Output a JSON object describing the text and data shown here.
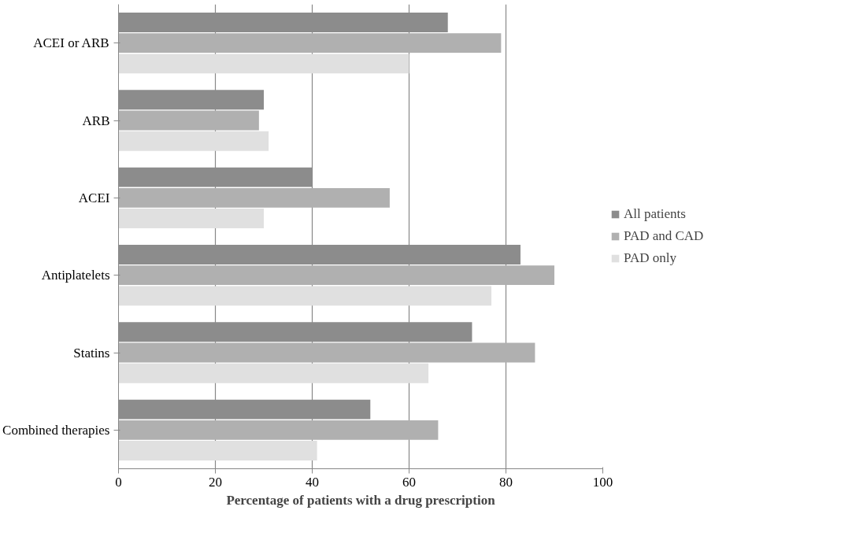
{
  "chart_data": {
    "type": "bar",
    "orientation": "horizontal",
    "xlabel": "Percentage of patients with a drug prescription",
    "categories": [
      "ACEI or ARB",
      "ARB",
      "ACEI",
      "Antiplatelets",
      "Statins",
      "Combined therapies"
    ],
    "series": [
      {
        "name": "All patients",
        "color": "#8c8c8c",
        "values": [
          68,
          30,
          40,
          83,
          73,
          52
        ]
      },
      {
        "name": "PAD and CAD",
        "color": "#b0b0b0",
        "values": [
          79,
          29,
          56,
          90,
          86,
          66
        ]
      },
      {
        "name": "PAD only",
        "color": "#e0e0e0",
        "values": [
          60,
          31,
          30,
          77,
          64,
          41
        ]
      }
    ],
    "xlim": [
      0,
      100
    ],
    "xticks": [
      0,
      20,
      40,
      60,
      80,
      100
    ],
    "grid": "x",
    "legend": "right"
  }
}
